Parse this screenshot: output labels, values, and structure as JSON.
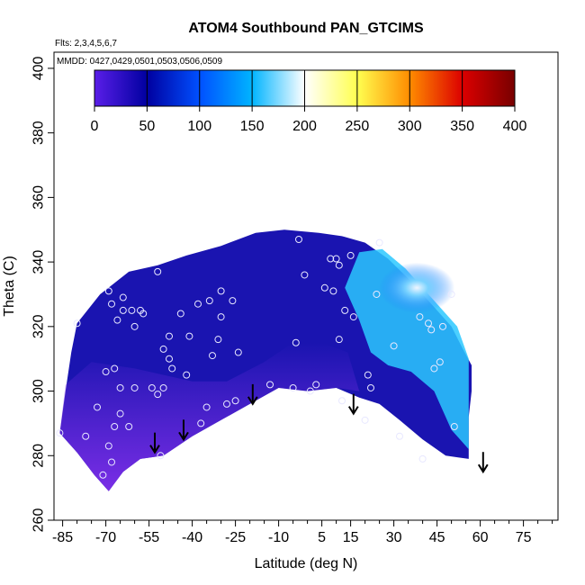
{
  "chart_data": {
    "type": "heatmap",
    "title": "ATOM4 Southbound PAN_GTCIMS",
    "annotations": {
      "flights": "Flts: 2,3,4,5,6,7",
      "dates": "MMDD: 0427,0429,0501,0503,0506,0509"
    },
    "xlabel": "Latitude (deg N)",
    "ylabel": "Theta (C)",
    "xlim": [
      -88,
      87
    ],
    "ylim": [
      260,
      405
    ],
    "x_ticks": [
      -85,
      -70,
      -55,
      -40,
      -25,
      -10,
      5,
      15,
      30,
      45,
      60,
      75
    ],
    "x_tick_labels": [
      "-85",
      "-70",
      "-55",
      "-40",
      "-25",
      "-10",
      "5",
      "15",
      "30",
      "45",
      "60",
      "75"
    ],
    "y_ticks": [
      260,
      280,
      300,
      320,
      340,
      360,
      380,
      400
    ],
    "y_tick_labels": [
      "260",
      "280",
      "300",
      "320",
      "340",
      "360",
      "380",
      "400"
    ],
    "colorbar": {
      "min": 0,
      "max": 400,
      "ticks": [
        0,
        50,
        100,
        150,
        200,
        250,
        300,
        350,
        400
      ],
      "tick_labels": [
        "0",
        "50",
        "100",
        "150",
        "200",
        "250",
        "300",
        "350",
        "400"
      ],
      "colors": [
        "#5a1ee8",
        "#0000a0",
        "#0050ff",
        "#00b4ff",
        "#ffffff",
        "#ffff50",
        "#ff8c00",
        "#dc0000",
        "#780000"
      ]
    },
    "field_colors": {
      "background_field": "#1a14b0",
      "low_theta_band": "#7a2ee6",
      "high_north_values": "#2cc8ff",
      "peak_north_values": "#f0f6ff"
    },
    "sample_points": [
      [
        -86,
        287
      ],
      [
        -80,
        321
      ],
      [
        -77,
        286
      ],
      [
        -73,
        295
      ],
      [
        -71,
        274
      ],
      [
        -70,
        306
      ],
      [
        -69,
        331
      ],
      [
        -69,
        283
      ],
      [
        -68,
        327
      ],
      [
        -68,
        278
      ],
      [
        -67,
        307
      ],
      [
        -67,
        289
      ],
      [
        -66,
        322
      ],
      [
        -65,
        301
      ],
      [
        -65,
        293
      ],
      [
        -64,
        329
      ],
      [
        -64,
        325
      ],
      [
        -62,
        289
      ],
      [
        -61,
        325
      ],
      [
        -60,
        320
      ],
      [
        -60,
        301
      ],
      [
        -58,
        325
      ],
      [
        -57,
        324
      ],
      [
        -54,
        301
      ],
      [
        -52,
        337
      ],
      [
        -51,
        280
      ],
      [
        -52,
        299
      ],
      [
        -50,
        313
      ],
      [
        -50,
        301
      ],
      [
        -48,
        317
      ],
      [
        -48,
        310
      ],
      [
        -47,
        307
      ],
      [
        -44,
        324
      ],
      [
        -42,
        305
      ],
      [
        -41,
        317
      ],
      [
        -38,
        327
      ],
      [
        -37,
        290
      ],
      [
        -35,
        295
      ],
      [
        -34,
        328
      ],
      [
        -33,
        311
      ],
      [
        -31,
        316
      ],
      [
        -30,
        331
      ],
      [
        -30,
        323
      ],
      [
        -28,
        296
      ],
      [
        -26,
        328
      ],
      [
        -25,
        297
      ],
      [
        -24,
        312
      ],
      [
        -13,
        302
      ],
      [
        -5,
        301
      ],
      [
        -4,
        315
      ],
      [
        -3,
        347
      ],
      [
        -1,
        336
      ],
      [
        1,
        300
      ],
      [
        3,
        302
      ],
      [
        6,
        332
      ],
      [
        8,
        341
      ],
      [
        9,
        331
      ],
      [
        10,
        341
      ],
      [
        11,
        339
      ],
      [
        11,
        316
      ],
      [
        12,
        297
      ],
      [
        13,
        325
      ],
      [
        15,
        342
      ],
      [
        16,
        323
      ],
      [
        20,
        291
      ],
      [
        21,
        305
      ],
      [
        22,
        301
      ],
      [
        25,
        346
      ],
      [
        24,
        330
      ],
      [
        30,
        314
      ],
      [
        32,
        286
      ],
      [
        39,
        323
      ],
      [
        40,
        279
      ],
      [
        42,
        321
      ],
      [
        43,
        319
      ],
      [
        44,
        307
      ],
      [
        46,
        309
      ],
      [
        47,
        320
      ],
      [
        50,
        330
      ],
      [
        51,
        289
      ]
    ],
    "flight_turn_arrows": [
      [
        -53,
        281
      ],
      [
        -43,
        285
      ],
      [
        -19,
        296
      ],
      [
        16,
        293
      ],
      [
        61,
        275
      ]
    ]
  }
}
